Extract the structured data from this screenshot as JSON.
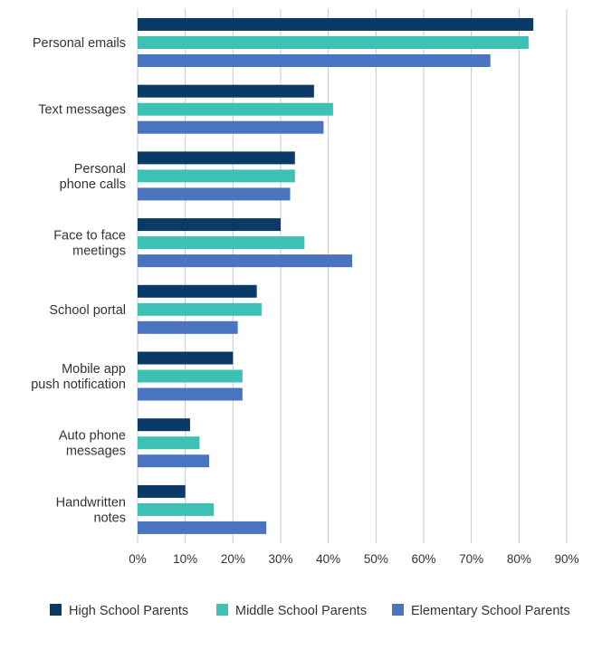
{
  "chart_data": {
    "type": "bar",
    "orientation": "horizontal",
    "title": "",
    "xlabel": "",
    "ylabel": "",
    "categories": [
      [
        "Personal emails"
      ],
      [
        "Text messages"
      ],
      [
        "Personal",
        "phone calls"
      ],
      [
        "Face to face",
        "meetings"
      ],
      [
        "School portal"
      ],
      [
        "Mobile app",
        "push notification"
      ],
      [
        "Auto phone",
        "messages"
      ],
      [
        "Handwritten",
        "notes"
      ]
    ],
    "series": [
      {
        "name": "High School Parents",
        "color": "#0b3a66",
        "values": [
          83,
          37,
          33,
          30,
          25,
          20,
          11,
          10
        ]
      },
      {
        "name": "Middle School Parents",
        "color": "#3ec1b5",
        "values": [
          82,
          41,
          33,
          35,
          26,
          22,
          13,
          16
        ]
      },
      {
        "name": "Elementary School Parents",
        "color": "#4a74bf",
        "values": [
          74,
          39,
          32,
          45,
          21,
          22,
          15,
          27
        ]
      }
    ],
    "xlim": [
      0,
      90
    ],
    "xticks": [
      0,
      10,
      20,
      30,
      40,
      50,
      60,
      70,
      80,
      90
    ],
    "tick_format": "%",
    "grid": true,
    "legend_position": "bottom"
  }
}
